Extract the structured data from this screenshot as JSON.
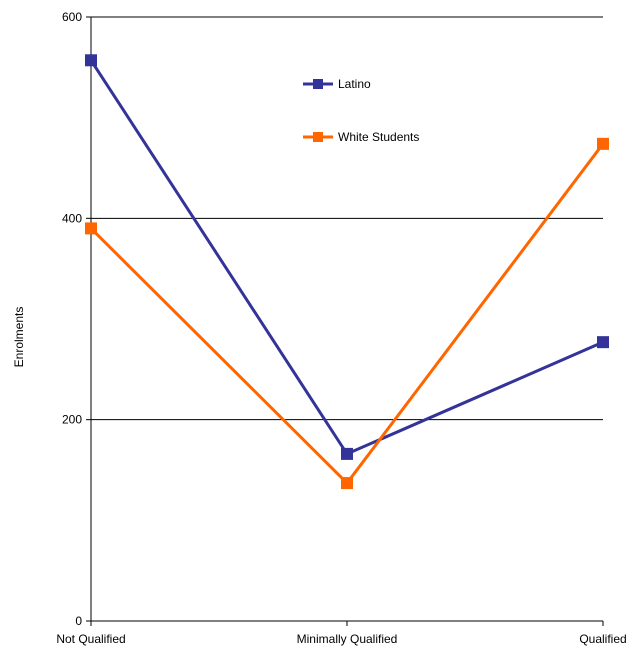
{
  "chart_data": {
    "type": "line",
    "title": "",
    "xlabel": "",
    "ylabel": "Enrolments",
    "categories": [
      "Not Qualified",
      "Minimally Qualified",
      "Qualified"
    ],
    "ylim": [
      0,
      600
    ],
    "yticks": [
      0,
      200,
      400,
      600
    ],
    "grid": true,
    "legend_position": "top-center",
    "series": [
      {
        "name": "Latino",
        "color": "#333399",
        "marker": "square",
        "values": [
          557,
          166,
          277
        ]
      },
      {
        "name": "White Students",
        "color": "#FF6600",
        "marker": "square",
        "values": [
          390,
          137,
          474
        ]
      }
    ]
  }
}
